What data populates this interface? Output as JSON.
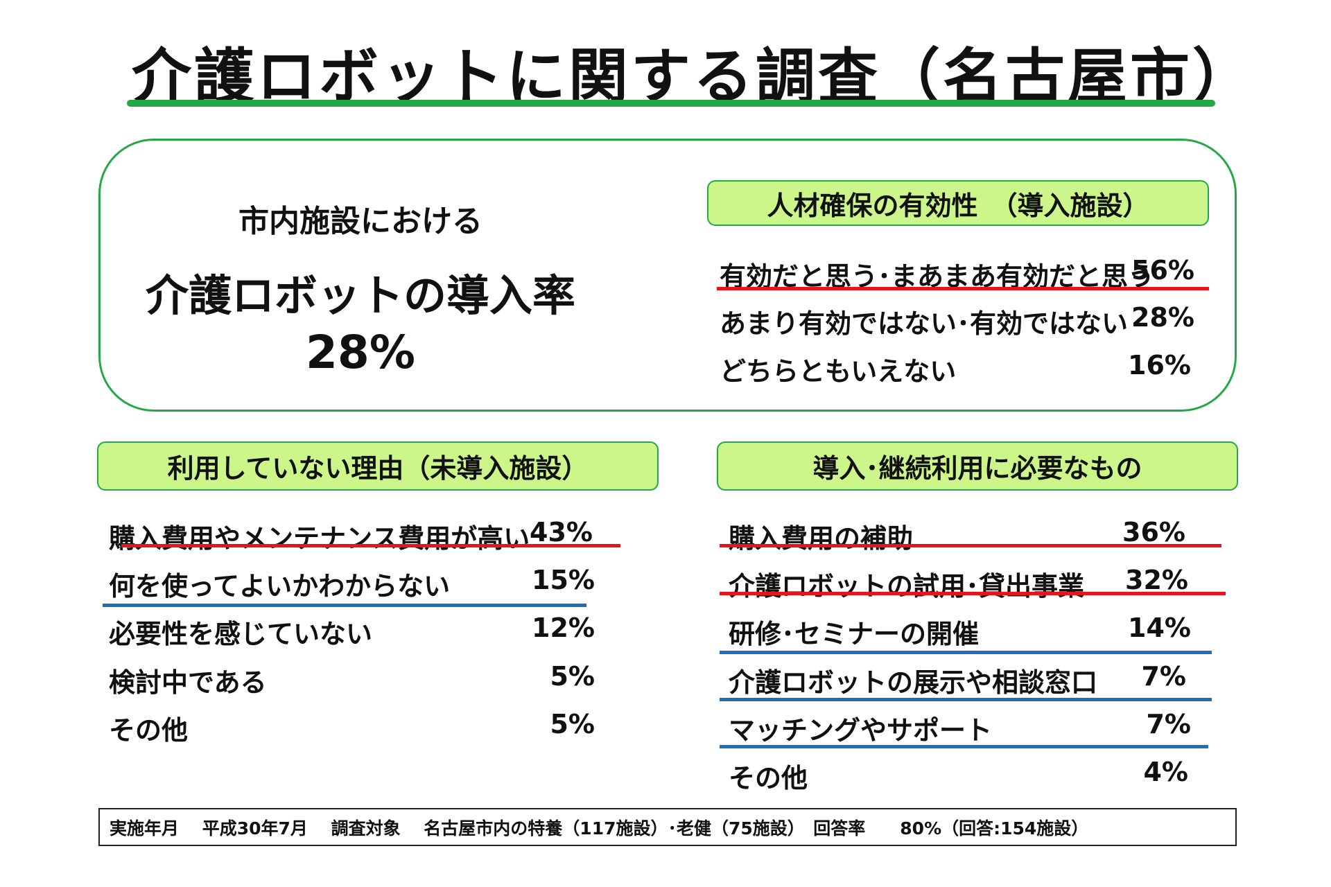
{
  "title": "介護ロボットに関する調査（名古屋市）",
  "intro": {
    "line1": "市内施設における",
    "label": "介護ロボットの導入率",
    "value": "28%"
  },
  "effectiveness": {
    "heading": "人材確保の有効性　（導入施設）",
    "items": [
      {
        "label": "有効だと思う･まあまあ有効だと思う",
        "value": "56%"
      },
      {
        "label": "あまり有効ではない･有効ではない",
        "value": "28%"
      },
      {
        "label": "どちらともいえない",
        "value": "16%"
      }
    ]
  },
  "reasons": {
    "heading": "利用していない理由（未導入施設）",
    "items": [
      {
        "label": "購入費用やメンテナンス費用が高い",
        "value": "43%"
      },
      {
        "label": "何を使ってよいかわからない",
        "value": "15%"
      },
      {
        "label": "必要性を感じていない",
        "value": "12%"
      },
      {
        "label": "検討中である",
        "value": "5%"
      },
      {
        "label": "その他",
        "value": "5%"
      }
    ]
  },
  "needs": {
    "heading": "導入･継続利用に必要なもの",
    "items": [
      {
        "label": "購入費用の補助",
        "value": "36%"
      },
      {
        "label": "介護ロボットの試用･貸出事業",
        "value": "32%"
      },
      {
        "label": "研修･セミナーの開催",
        "value": "14%"
      },
      {
        "label": "介護ロボットの展示や相談窓口",
        "value": "7%"
      },
      {
        "label": "マッチングやサポート",
        "value": "7%"
      },
      {
        "label": "その他",
        "value": "4%"
      }
    ]
  },
  "footer": "実施年月　 平成30年7月　 調査対象　 名古屋市内の特養（117施設）･老健（75施設）　回答率　　80%（回答:154施設）",
  "colors": {
    "green": "#23a845",
    "heading_fill": "#ccf68a",
    "red_underline": "#e8141c",
    "blue_underline": "#1f6fb8"
  }
}
